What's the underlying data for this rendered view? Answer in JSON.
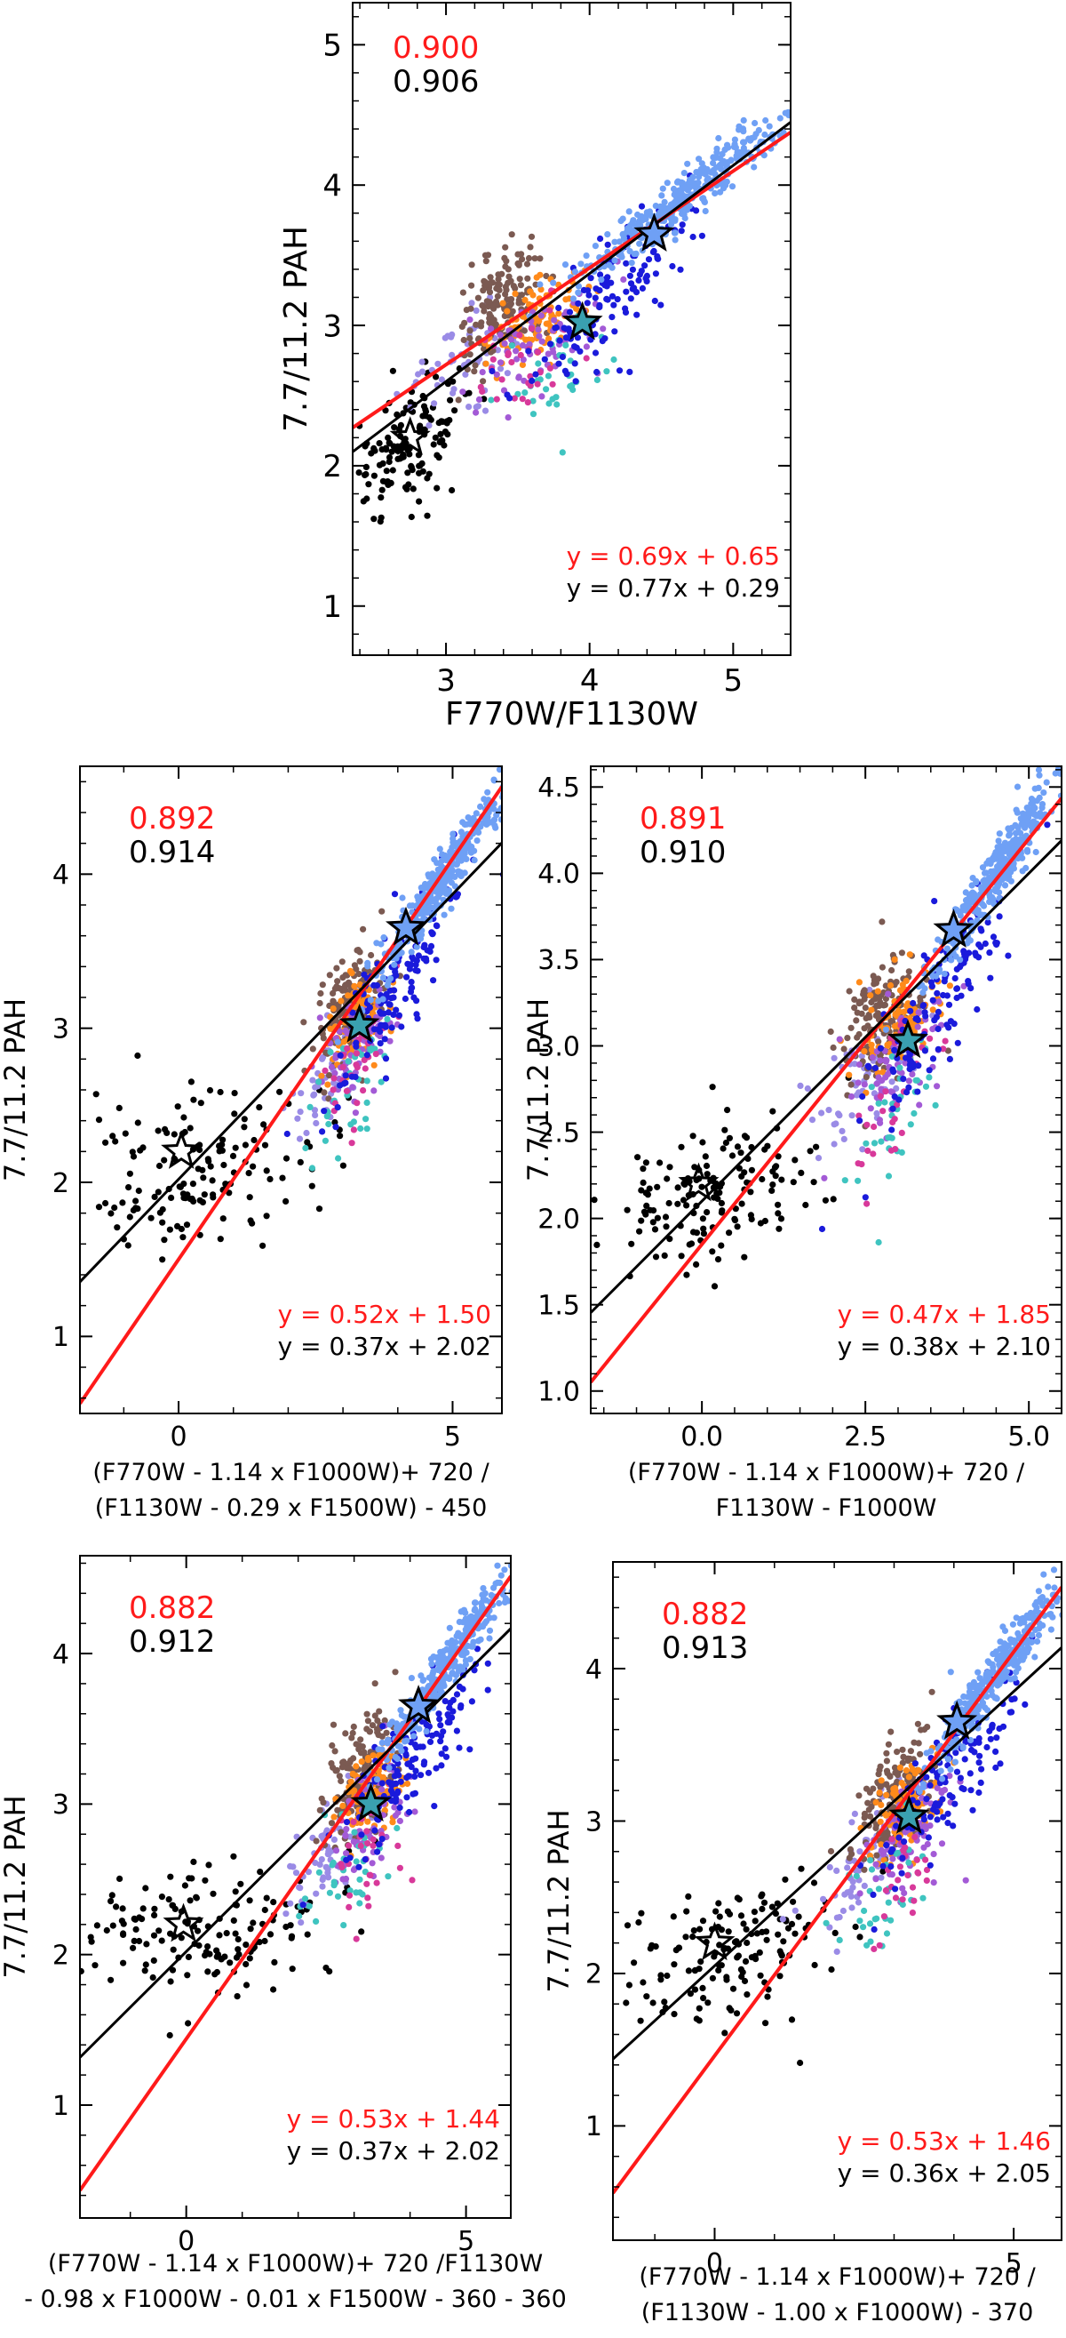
{
  "colors": {
    "red": "#ff1a1a",
    "black": "#000000",
    "palette": [
      "#000000",
      "#9a8be6",
      "#7b5a52",
      "#ff8a1a",
      "#6fa0f5",
      "#1a1adb",
      "#3fc4c0",
      "#d8399a",
      "#a35ad6"
    ],
    "star_fill": [
      "#3aa0b0",
      "#000000"
    ]
  },
  "chart_data": [
    {
      "type": "scatter",
      "panel": "top",
      "ylabel": "7.7/11.2 PAH",
      "xlabel_lines": [
        "F770W/F1130W"
      ],
      "xlim": [
        2.35,
        5.4
      ],
      "ylim": [
        0.65,
        5.3
      ],
      "xticks": [
        3,
        4,
        5
      ],
      "yticks": [
        1,
        2,
        3,
        4,
        5
      ],
      "correlations": [
        "0.900",
        "0.906"
      ],
      "fits": [
        {
          "color": "red",
          "slope": 0.69,
          "intercept": 0.65,
          "label": "y = 0.69x + 0.65"
        },
        {
          "color": "black",
          "slope": 0.77,
          "intercept": 0.29,
          "label": "y = 0.77x + 0.29"
        }
      ],
      "stars": [
        [
          2.75,
          2.2
        ],
        [
          3.95,
          3.02
        ],
        [
          4.45,
          3.65
        ]
      ],
      "clusters": [
        {
          "color": 0,
          "n": 140,
          "cx": 2.75,
          "cy": 2.15,
          "sx": 0.22,
          "sy": 0.25,
          "corr": 0.5
        },
        {
          "color": 1,
          "n": 60,
          "cx": 3.1,
          "cy": 2.75,
          "sx": 0.2,
          "sy": 0.18,
          "corr": 0.6
        },
        {
          "color": 2,
          "n": 160,
          "cx": 3.4,
          "cy": 3.15,
          "sx": 0.16,
          "sy": 0.2,
          "corr": 0.4
        },
        {
          "color": 3,
          "n": 100,
          "cx": 3.65,
          "cy": 3.05,
          "sx": 0.16,
          "sy": 0.15,
          "corr": 0.4
        },
        {
          "color": 8,
          "n": 70,
          "cx": 3.65,
          "cy": 2.9,
          "sx": 0.25,
          "sy": 0.22,
          "corr": 0.5
        },
        {
          "color": 6,
          "n": 35,
          "cx": 3.7,
          "cy": 2.6,
          "sx": 0.22,
          "sy": 0.22,
          "corr": 0.5
        },
        {
          "color": 7,
          "n": 30,
          "cx": 3.55,
          "cy": 2.7,
          "sx": 0.2,
          "sy": 0.25,
          "corr": 0.5
        },
        {
          "color": 5,
          "n": 140,
          "cx": 4.2,
          "cy": 3.3,
          "sx": 0.3,
          "sy": 0.35,
          "corr": 0.8
        },
        {
          "color": 4,
          "n": 330,
          "cx": 4.7,
          "cy": 3.95,
          "sx": 0.35,
          "sy": 0.28,
          "corr": 0.95
        }
      ]
    },
    {
      "type": "scatter",
      "panel": "middle-left",
      "ylabel": "7.7/11.2 PAH",
      "xlabel_lines": [
        "(F770W - 1.14 x F1000W)+ 720 /",
        "(F1130W - 0.29 x F1500W) - 450"
      ],
      "xlim": [
        -1.8,
        5.9
      ],
      "ylim": [
        0.5,
        4.7
      ],
      "xticks": [
        0,
        5
      ],
      "yticks": [
        1,
        2,
        3,
        4
      ],
      "correlations": [
        "0.892",
        "0.914"
      ],
      "fits": [
        {
          "color": "red",
          "slope": 0.52,
          "intercept": 1.5,
          "label": "y = 0.52x + 1.50"
        },
        {
          "color": "black",
          "slope": 0.37,
          "intercept": 2.02,
          "label": "y = 0.37x + 2.02"
        }
      ],
      "stars": [
        [
          0.05,
          2.2
        ],
        [
          3.3,
          3.02
        ],
        [
          4.15,
          3.65
        ]
      ],
      "clusters": [
        {
          "color": 0,
          "n": 150,
          "cx": 0.4,
          "cy": 2.1,
          "sx": 1.1,
          "sy": 0.25,
          "corr": 0.2
        },
        {
          "color": 1,
          "n": 60,
          "cx": 2.8,
          "cy": 2.75,
          "sx": 0.35,
          "sy": 0.22,
          "corr": 0.6
        },
        {
          "color": 2,
          "n": 160,
          "cx": 3.1,
          "cy": 3.15,
          "sx": 0.3,
          "sy": 0.2,
          "corr": 0.4
        },
        {
          "color": 3,
          "n": 100,
          "cx": 3.3,
          "cy": 3.05,
          "sx": 0.28,
          "sy": 0.15,
          "corr": 0.4
        },
        {
          "color": 8,
          "n": 70,
          "cx": 3.3,
          "cy": 2.9,
          "sx": 0.35,
          "sy": 0.22,
          "corr": 0.5
        },
        {
          "color": 6,
          "n": 35,
          "cx": 3.1,
          "cy": 2.6,
          "sx": 0.35,
          "sy": 0.22,
          "corr": 0.5
        },
        {
          "color": 7,
          "n": 30,
          "cx": 3.2,
          "cy": 2.7,
          "sx": 0.3,
          "sy": 0.25,
          "corr": 0.5
        },
        {
          "color": 5,
          "n": 140,
          "cx": 4.0,
          "cy": 3.3,
          "sx": 0.6,
          "sy": 0.35,
          "corr": 0.85
        },
        {
          "color": 4,
          "n": 330,
          "cx": 4.8,
          "cy": 3.95,
          "sx": 0.55,
          "sy": 0.3,
          "corr": 0.95
        }
      ]
    },
    {
      "type": "scatter",
      "panel": "middle-right",
      "ylabel": "7.7/11.2 PAH",
      "xlabel_lines": [
        "(F770W - 1.14 x F1000W)+ 720 /",
        "F1130W - F1000W"
      ],
      "xlim": [
        -1.7,
        5.5
      ],
      "ylim": [
        0.87,
        4.62
      ],
      "xticks": [
        0.0,
        2.5,
        5.0
      ],
      "xtick_labels": [
        "0.0",
        "2.5",
        "5.0"
      ],
      "yticks": [
        1.0,
        1.5,
        2.0,
        2.5,
        3.0,
        3.5,
        4.0,
        4.5
      ],
      "ytick_labels": [
        "1.0",
        "1.5",
        "2.0",
        "2.5",
        "3.0",
        "3.5",
        "4.0",
        "4.5"
      ],
      "correlations": [
        "0.891",
        "0.910"
      ],
      "fits": [
        {
          "color": "red",
          "slope": 0.47,
          "intercept": 1.85,
          "label": "y = 0.47x + 1.85"
        },
        {
          "color": "black",
          "slope": 0.38,
          "intercept": 2.1,
          "label": "y = 0.38x + 2.10"
        }
      ],
      "stars": [
        [
          -0.05,
          2.2
        ],
        [
          3.15,
          3.03
        ],
        [
          3.85,
          3.67
        ]
      ],
      "clusters": [
        {
          "color": 0,
          "n": 150,
          "cx": 0.2,
          "cy": 2.15,
          "sx": 0.85,
          "sy": 0.22,
          "corr": 0.35
        },
        {
          "color": 1,
          "n": 60,
          "cx": 2.4,
          "cy": 2.8,
          "sx": 0.4,
          "sy": 0.22,
          "corr": 0.6
        },
        {
          "color": 2,
          "n": 160,
          "cx": 2.8,
          "cy": 3.15,
          "sx": 0.3,
          "sy": 0.2,
          "corr": 0.4
        },
        {
          "color": 3,
          "n": 100,
          "cx": 3.0,
          "cy": 3.1,
          "sx": 0.3,
          "sy": 0.16,
          "corr": 0.4
        },
        {
          "color": 8,
          "n": 70,
          "cx": 3.0,
          "cy": 2.95,
          "sx": 0.4,
          "sy": 0.22,
          "corr": 0.5
        },
        {
          "color": 6,
          "n": 35,
          "cx": 2.9,
          "cy": 2.55,
          "sx": 0.35,
          "sy": 0.22,
          "corr": 0.5
        },
        {
          "color": 7,
          "n": 30,
          "cx": 3.0,
          "cy": 2.7,
          "sx": 0.3,
          "sy": 0.25,
          "corr": 0.5
        },
        {
          "color": 5,
          "n": 140,
          "cx": 3.7,
          "cy": 3.3,
          "sx": 0.55,
          "sy": 0.35,
          "corr": 0.85
        },
        {
          "color": 4,
          "n": 330,
          "cx": 4.5,
          "cy": 4.0,
          "sx": 0.5,
          "sy": 0.3,
          "corr": 0.95
        }
      ]
    },
    {
      "type": "scatter",
      "panel": "bottom-left",
      "ylabel": "7.7/11.2 PAH",
      "xlabel_lines": [
        "(F770W - 1.14 x F1000W)+ 720 /F1130W",
        "- 0.98 x F1000W - 0.01 x F1500W - 360 - 360"
      ],
      "xlim": [
        -1.9,
        5.8
      ],
      "ylim": [
        0.25,
        4.65
      ],
      "xticks": [
        0,
        5
      ],
      "yticks": [
        1,
        2,
        3,
        4
      ],
      "correlations": [
        "0.882",
        "0.912"
      ],
      "fits": [
        {
          "color": "red",
          "slope": 0.53,
          "intercept": 1.44,
          "label": "y = 0.53x + 1.44"
        },
        {
          "color": "black",
          "slope": 0.37,
          "intercept": 2.02,
          "label": "y = 0.37x + 2.02"
        }
      ],
      "stars": [
        [
          -0.05,
          2.2
        ],
        [
          3.3,
          3.0
        ],
        [
          4.15,
          3.65
        ]
      ],
      "clusters": [
        {
          "color": 0,
          "n": 150,
          "cx": 0.3,
          "cy": 2.15,
          "sx": 1.05,
          "sy": 0.25,
          "corr": 0.2
        },
        {
          "color": 1,
          "n": 60,
          "cx": 2.6,
          "cy": 2.7,
          "sx": 0.4,
          "sy": 0.22,
          "corr": 0.6
        },
        {
          "color": 2,
          "n": 160,
          "cx": 3.1,
          "cy": 3.2,
          "sx": 0.3,
          "sy": 0.2,
          "corr": 0.4
        },
        {
          "color": 3,
          "n": 100,
          "cx": 3.3,
          "cy": 3.1,
          "sx": 0.28,
          "sy": 0.15,
          "corr": 0.4
        },
        {
          "color": 8,
          "n": 70,
          "cx": 3.3,
          "cy": 2.9,
          "sx": 0.4,
          "sy": 0.22,
          "corr": 0.5
        },
        {
          "color": 6,
          "n": 35,
          "cx": 2.8,
          "cy": 2.5,
          "sx": 0.35,
          "sy": 0.22,
          "corr": 0.5
        },
        {
          "color": 7,
          "n": 30,
          "cx": 3.3,
          "cy": 2.7,
          "sx": 0.3,
          "sy": 0.25,
          "corr": 0.5
        },
        {
          "color": 5,
          "n": 140,
          "cx": 4.0,
          "cy": 3.3,
          "sx": 0.6,
          "sy": 0.35,
          "corr": 0.85
        },
        {
          "color": 4,
          "n": 330,
          "cx": 4.7,
          "cy": 3.95,
          "sx": 0.55,
          "sy": 0.3,
          "corr": 0.95
        }
      ]
    },
    {
      "type": "scatter",
      "panel": "bottom-right",
      "ylabel": "7.7/11.2 PAH",
      "xlabel_lines": [
        "(F770W - 1.14 x F1000W)+ 720 /",
        "(F1130W - 1.00 x F1000W) - 370"
      ],
      "xlim": [
        -1.7,
        5.8
      ],
      "ylim": [
        0.25,
        4.7
      ],
      "xticks": [
        0,
        5
      ],
      "yticks": [
        1,
        2,
        3,
        4
      ],
      "correlations": [
        "0.882",
        "0.913"
      ],
      "fits": [
        {
          "color": "red",
          "slope": 0.53,
          "intercept": 1.46,
          "label": "y = 0.53x + 1.46"
        },
        {
          "color": "black",
          "slope": 0.36,
          "intercept": 2.05,
          "label": "y = 0.36x + 2.05"
        }
      ],
      "stars": [
        [
          0.0,
          2.2
        ],
        [
          3.25,
          3.03
        ],
        [
          4.05,
          3.65
        ]
      ],
      "clusters": [
        {
          "color": 0,
          "n": 150,
          "cx": 0.3,
          "cy": 2.15,
          "sx": 0.95,
          "sy": 0.25,
          "corr": 0.25
        },
        {
          "color": 1,
          "n": 60,
          "cx": 2.5,
          "cy": 2.75,
          "sx": 0.4,
          "sy": 0.22,
          "corr": 0.6
        },
        {
          "color": 2,
          "n": 160,
          "cx": 3.0,
          "cy": 3.15,
          "sx": 0.3,
          "sy": 0.2,
          "corr": 0.4
        },
        {
          "color": 3,
          "n": 100,
          "cx": 3.2,
          "cy": 3.1,
          "sx": 0.28,
          "sy": 0.15,
          "corr": 0.4
        },
        {
          "color": 8,
          "n": 70,
          "cx": 3.2,
          "cy": 2.9,
          "sx": 0.4,
          "sy": 0.22,
          "corr": 0.5
        },
        {
          "color": 6,
          "n": 35,
          "cx": 2.9,
          "cy": 2.55,
          "sx": 0.35,
          "sy": 0.22,
          "corr": 0.5
        },
        {
          "color": 7,
          "n": 30,
          "cx": 3.2,
          "cy": 2.7,
          "sx": 0.3,
          "sy": 0.25,
          "corr": 0.5
        },
        {
          "color": 5,
          "n": 140,
          "cx": 3.9,
          "cy": 3.3,
          "sx": 0.6,
          "sy": 0.35,
          "corr": 0.85
        },
        {
          "color": 4,
          "n": 330,
          "cx": 4.7,
          "cy": 3.95,
          "sx": 0.55,
          "sy": 0.3,
          "corr": 0.95
        }
      ]
    }
  ]
}
